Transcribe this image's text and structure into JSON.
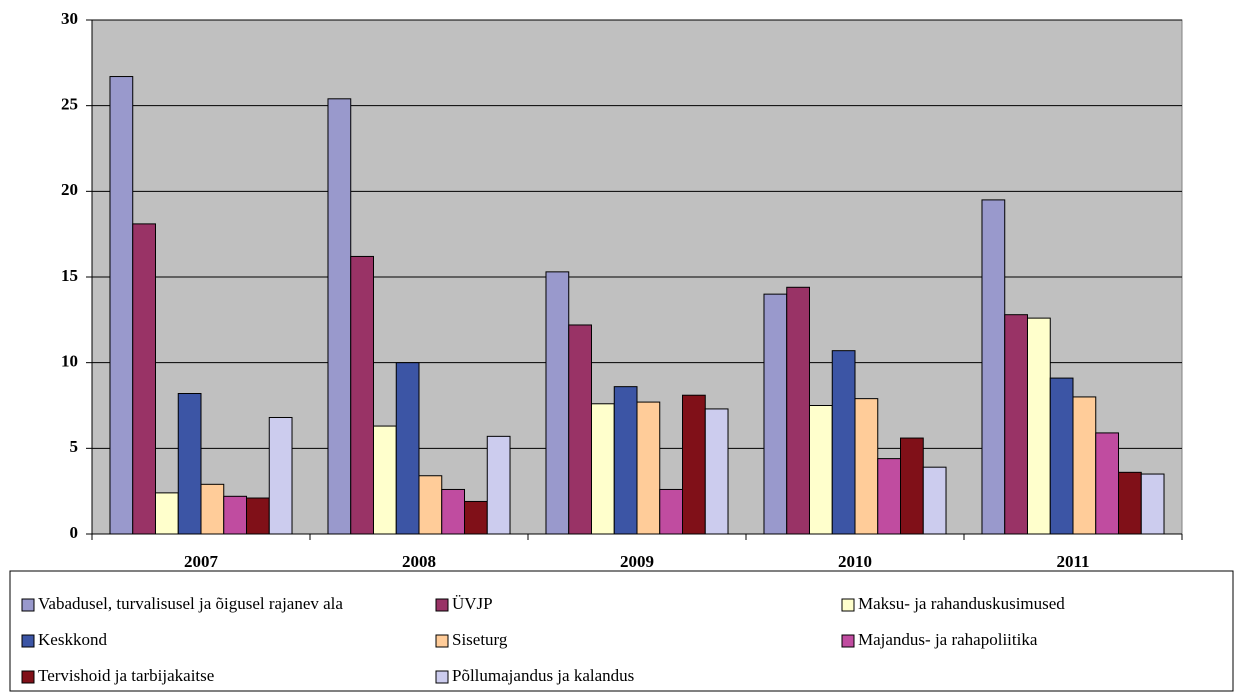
{
  "chart_data": {
    "type": "bar",
    "categories": [
      "2007",
      "2008",
      "2009",
      "2010",
      "2011"
    ],
    "series": [
      {
        "name": "Vabadusel, turvalisusel ja õigusel rajanev ala",
        "color": "#9999cc",
        "values": [
          26.7,
          25.4,
          15.3,
          14.0,
          19.5
        ]
      },
      {
        "name": "ÜVJP",
        "color": "#993366",
        "values": [
          18.1,
          16.2,
          12.2,
          14.4,
          12.8
        ]
      },
      {
        "name": "Maksu- ja rahanduskusimused",
        "color": "#ffffcc",
        "values": [
          2.4,
          6.3,
          7.6,
          7.5,
          12.6
        ]
      },
      {
        "name": "Keskkond",
        "color": "#3c55a5",
        "values": [
          8.2,
          10.0,
          8.6,
          10.7,
          9.1
        ]
      },
      {
        "name": "Siseturg",
        "color": "#ffcc99",
        "values": [
          2.9,
          3.4,
          7.7,
          7.9,
          8.0
        ]
      },
      {
        "name": "Majandus- ja rahapoliitika",
        "color": "#c04ca0",
        "values": [
          2.2,
          2.6,
          2.6,
          4.4,
          5.9
        ]
      },
      {
        "name": "Tervishoid ja tarbijakaitse",
        "color": "#801018",
        "values": [
          2.1,
          1.9,
          8.1,
          5.6,
          3.6
        ]
      },
      {
        "name": "Põllumajandus ja kalandus",
        "color": "#ccccee",
        "values": [
          6.8,
          5.7,
          7.3,
          3.9,
          3.5
        ]
      }
    ],
    "ylim": [
      0,
      30
    ],
    "yticks": [
      0,
      5,
      10,
      15,
      20,
      25,
      30
    ],
    "grid": true
  }
}
